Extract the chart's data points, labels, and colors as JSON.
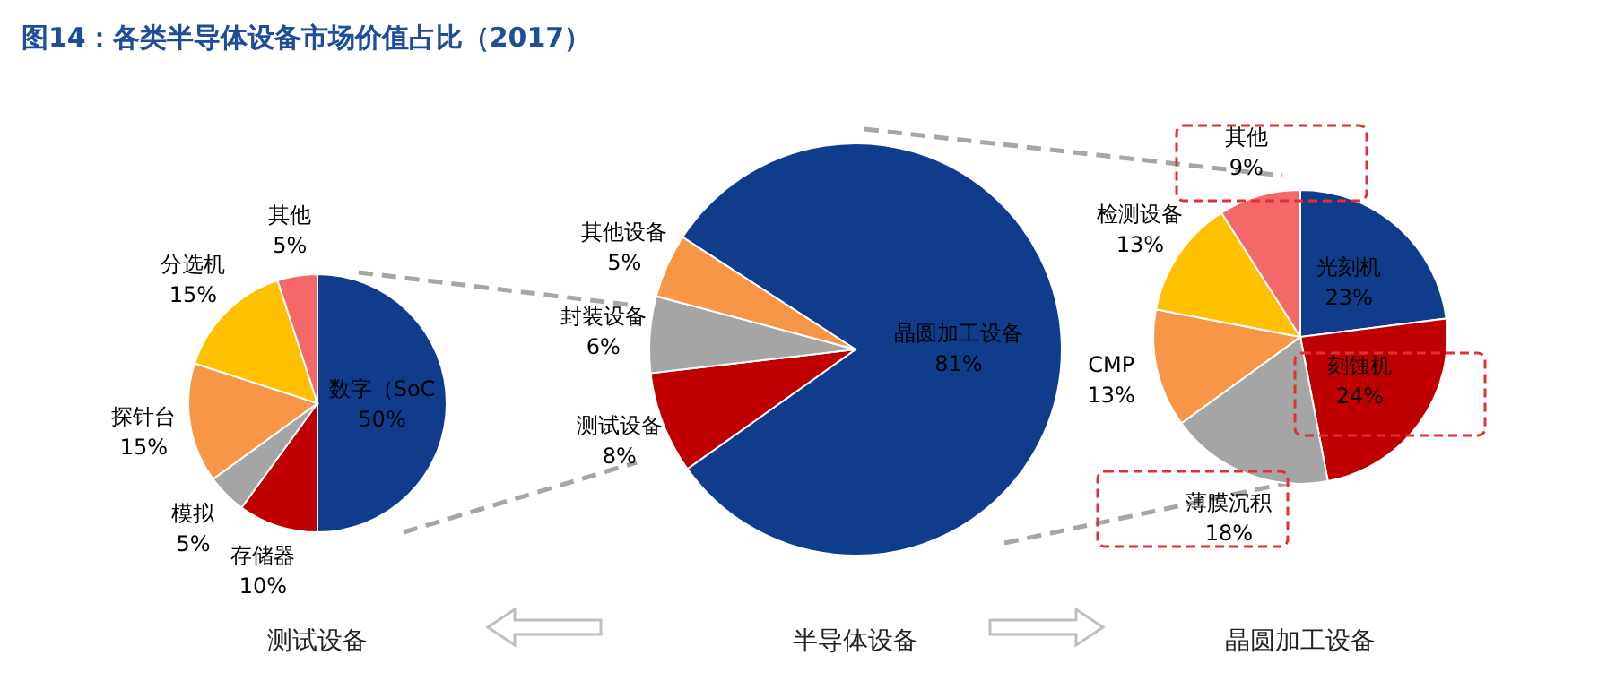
{
  "chart_data": [
    {
      "type": "pie",
      "title": "图14：各类半导体设备市场价值占比（2017）",
      "xlabel": "测试设备",
      "categories": [
        "数字（SoC",
        "存储器",
        "模拟",
        "探针台",
        "分选机",
        "其他"
      ],
      "values": [
        50,
        10,
        5,
        15,
        15,
        5
      ],
      "value_labels": [
        "50%",
        "10%",
        "5%",
        "15%",
        "15%",
        "5%"
      ],
      "colors": [
        "#0f3d8c",
        "#c00000",
        "#a5a5a5",
        "#f79646",
        "#ffc000",
        "#f4686a"
      ]
    },
    {
      "type": "pie",
      "xlabel": "半导体设备",
      "categories": [
        "晶圆加工设备",
        "测试设备",
        "封装设备",
        "其他设备"
      ],
      "values": [
        81,
        8,
        6,
        5
      ],
      "value_labels": [
        "81%",
        "8%",
        "6%",
        "5%"
      ],
      "colors": [
        "#0f3d8c",
        "#c00000",
        "#a5a5a5",
        "#f79646"
      ]
    },
    {
      "type": "pie",
      "xlabel": "晶圆加工设备",
      "categories": [
        "光刻机",
        "刻蚀机",
        "薄膜沉积",
        "CMP",
        "检测设备",
        "其他"
      ],
      "values": [
        23,
        24,
        18,
        13,
        13,
        9
      ],
      "value_labels": [
        "23%",
        "24%",
        "18%",
        "13%",
        "13%",
        "9%"
      ],
      "colors": [
        "#0f3d8c",
        "#c00000",
        "#a5a5a5",
        "#f79646",
        "#ffc000",
        "#f4686a"
      ]
    }
  ]
}
